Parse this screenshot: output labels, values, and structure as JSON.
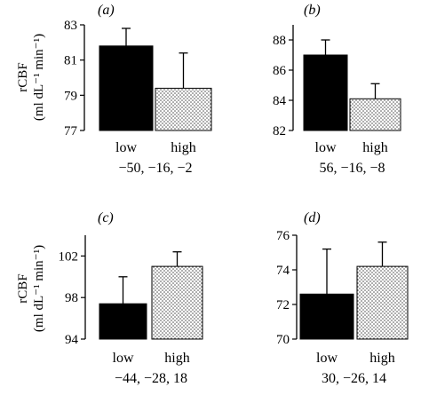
{
  "chart_data": [
    {
      "type": "bar",
      "panel": "(a)",
      "ylabel": "rCBF",
      "ylabel_units": "(ml dL⁻¹ min⁻¹)",
      "categories": [
        "low",
        "high"
      ],
      "values": [
        81.8,
        79.4
      ],
      "errors": [
        1.0,
        2.0
      ],
      "ylim": [
        77,
        83
      ],
      "yticks": [
        "77",
        "79",
        "81",
        "83"
      ],
      "xlabel": "−50, −16, −2",
      "fills": [
        "solid",
        "stippled"
      ]
    },
    {
      "type": "bar",
      "panel": "(b)",
      "ylabel": "",
      "ylabel_units": "",
      "categories": [
        "low",
        "high"
      ],
      "values": [
        87.0,
        84.1
      ],
      "errors": [
        1.0,
        1.0
      ],
      "ylim": [
        82,
        89
      ],
      "yticks": [
        "82",
        "84",
        "86",
        "88"
      ],
      "xlabel": "56, −16, −8",
      "fills": [
        "solid",
        "stippled"
      ]
    },
    {
      "type": "bar",
      "panel": "(c)",
      "ylabel": "rCBF",
      "ylabel_units": "(ml dL⁻¹ min⁻¹)",
      "categories": [
        "low",
        "high"
      ],
      "values": [
        97.4,
        101.0
      ],
      "errors": [
        2.6,
        1.4
      ],
      "ylim": [
        94,
        104
      ],
      "yticks": [
        "94",
        "98",
        "102"
      ],
      "xlabel": "−44, −28, 18",
      "fills": [
        "solid",
        "stippled"
      ]
    },
    {
      "type": "bar",
      "panel": "(d)",
      "ylabel": "",
      "ylabel_units": "",
      "categories": [
        "low",
        "high"
      ],
      "values": [
        72.6,
        74.2
      ],
      "errors": [
        2.6,
        1.4
      ],
      "ylim": [
        70,
        76
      ],
      "yticks": [
        "70",
        "72",
        "74",
        "76"
      ],
      "xlabel": "30, −26, 14",
      "fills": [
        "solid",
        "stippled"
      ]
    }
  ],
  "colors": {
    "solid_bar": "#000000",
    "stipple_dot": "#444444",
    "stipple_bg": "#ffffff"
  }
}
